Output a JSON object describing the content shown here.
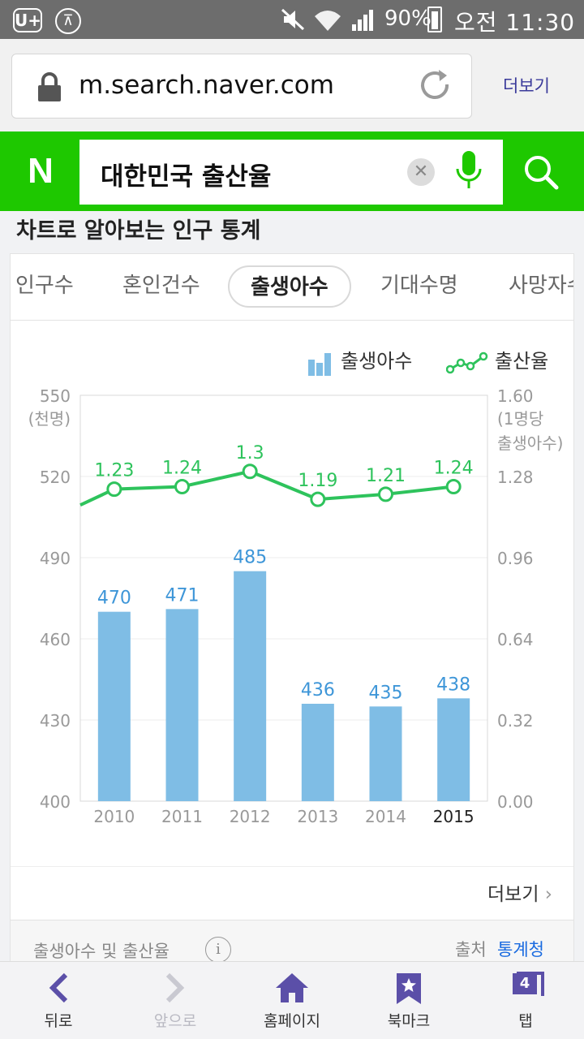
{
  "status_bar": {
    "carrier_icon": "U+",
    "battery": "90%",
    "time": "오전 11:30",
    "icons": [
      "uplus-icon",
      "a-icon",
      "mute-icon",
      "wifi-icon",
      "signal-icon",
      "battery-icon"
    ]
  },
  "browser": {
    "url": "m.search.naver.com",
    "more_label": "더보기"
  },
  "naver": {
    "logo": "N",
    "search_query": "대한민국 출산율",
    "brand_color": "#1ec800"
  },
  "section": {
    "heading": "차트로 알아보는 인구 통계",
    "tabs": [
      {
        "label": "인구수",
        "active": false
      },
      {
        "label": "혼인건수",
        "active": false
      },
      {
        "label": "출생아수",
        "active": true
      },
      {
        "label": "기대수명",
        "active": false
      },
      {
        "label": "사망자수",
        "active": false
      }
    ],
    "more": "더보기",
    "footer_title": "출생아수 및 출산율",
    "source_label": "출처",
    "source_name": "통계청"
  },
  "chart_data": {
    "type": "bar",
    "categories": [
      "2010",
      "2011",
      "2012",
      "2013",
      "2014",
      "2015"
    ],
    "highlight_category": "2015",
    "series": [
      {
        "name": "출생아수",
        "type": "bar",
        "axis": "left",
        "color": "#7fbde5",
        "label_color": "#3e96d8",
        "values": [
          470,
          471,
          485,
          436,
          435,
          438
        ]
      },
      {
        "name": "출산율",
        "type": "line",
        "axis": "right",
        "color": "#2ec35c",
        "values": [
          1.23,
          1.24,
          1.3,
          1.19,
          1.21,
          1.24
        ],
        "labels": [
          "1.23",
          "1.24",
          "1.3",
          "1.19",
          "1.21",
          "1.24"
        ]
      }
    ],
    "y_left": {
      "label": "(천명)",
      "ticks": [
        "550",
        "520",
        "490",
        "460",
        "430",
        "400"
      ],
      "lim": [
        400,
        550
      ]
    },
    "y_right": {
      "label": [
        "(1명당",
        "출생아수)"
      ],
      "ticks": [
        "1.60",
        "1.28",
        "0.96",
        "0.64",
        "0.32",
        "0.00"
      ],
      "lim": [
        0,
        1.6
      ]
    },
    "grid": true,
    "legend_position": "top-right"
  },
  "bottom_nav": [
    {
      "label": "뒤로",
      "icon": "back-icon",
      "enabled": true
    },
    {
      "label": "앞으로",
      "icon": "forward-icon",
      "enabled": false
    },
    {
      "label": "홈페이지",
      "icon": "home-icon",
      "enabled": true
    },
    {
      "label": "북마크",
      "icon": "bookmark-icon",
      "enabled": true
    },
    {
      "label": "탭",
      "icon": "tabs-icon",
      "enabled": true,
      "count": "4"
    }
  ]
}
